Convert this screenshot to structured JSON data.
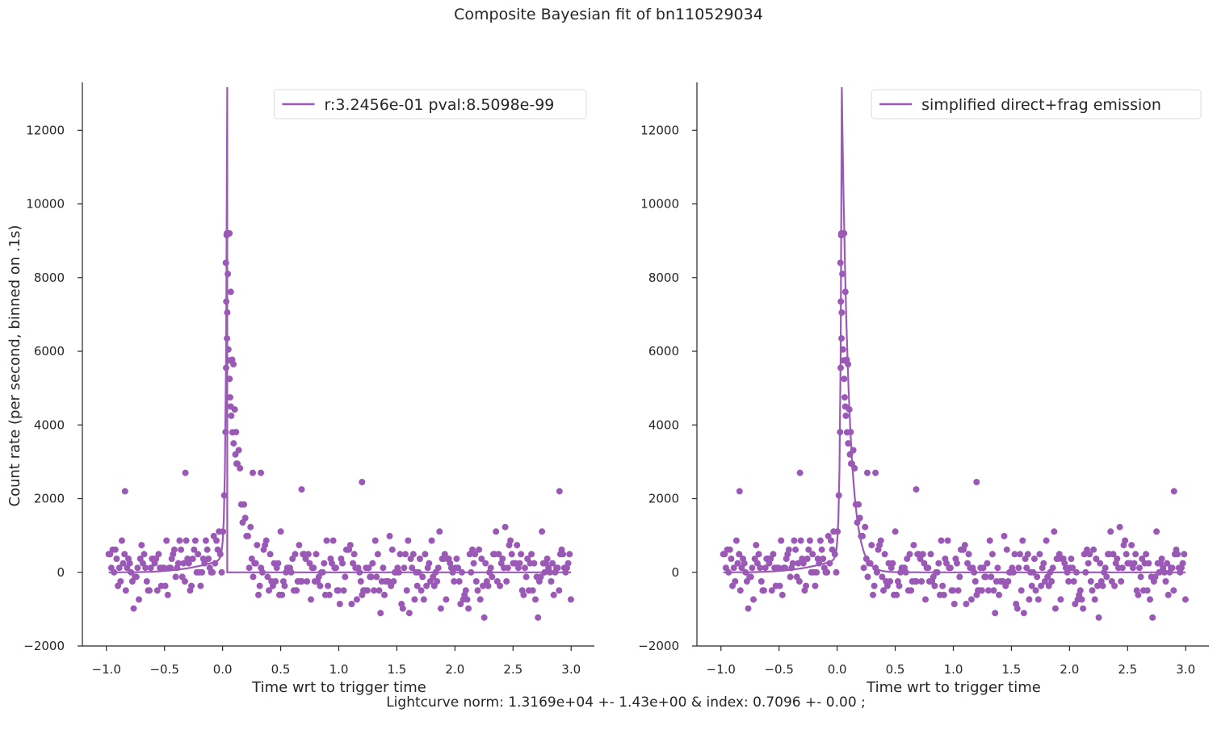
{
  "figure": {
    "title": "Composite Bayesian fit of bn110529034",
    "footer": "Lightcurve norm: 1.3169e+04 +- 1.43e+00 & index: 0.7096 +- 0.00 ;"
  },
  "colors": {
    "series": "#9b59b6",
    "axis": "#262626",
    "background": "#ffffff"
  },
  "chart_data": [
    {
      "type": "scatter",
      "xlabel": "Time wrt to trigger time",
      "ylabel": "Count rate (per second, binned on .1s)",
      "xlim": [
        -1.2,
        3.2
      ],
      "ylim": [
        -2000,
        13300
      ],
      "xticks": [
        -1.0,
        -0.5,
        0.0,
        0.5,
        1.0,
        1.5,
        2.0,
        2.5,
        3.0
      ],
      "xtick_labels": [
        "−1.0",
        "−0.5",
        "0.0",
        "0.5",
        "1.0",
        "1.5",
        "2.0",
        "2.5",
        "3.0"
      ],
      "yticks": [
        -2000,
        0,
        2000,
        4000,
        6000,
        8000,
        10000,
        12000
      ],
      "ytick_labels": [
        "−2000",
        "0",
        "2000",
        "4000",
        "6000",
        "8000",
        "10000",
        "12000"
      ],
      "grid": false,
      "legend": {
        "placement": "top-right",
        "entries": [
          "r:3.2456e-01  pval:8.5098e-99"
        ]
      },
      "fit_model": {
        "peak_time": 0.04,
        "peak_rate": 13169,
        "decay_tau": 0.06,
        "pre_peak": "power-law rise",
        "post_peak": "truncated"
      },
      "series_description": "Binned count-rate points (purple dots) and fitted lightcurve line"
    },
    {
      "type": "scatter",
      "xlabel": "Time wrt to trigger time",
      "ylabel": "",
      "xlim": [
        -1.2,
        3.2
      ],
      "ylim": [
        -2000,
        13300
      ],
      "xticks": [
        -1.0,
        -0.5,
        0.0,
        0.5,
        1.0,
        1.5,
        2.0,
        2.5,
        3.0
      ],
      "xtick_labels": [
        "−1.0",
        "−0.5",
        "0.0",
        "0.5",
        "1.0",
        "1.5",
        "2.0",
        "2.5",
        "3.0"
      ],
      "yticks": [
        -2000,
        0,
        2000,
        4000,
        6000,
        8000,
        10000,
        12000
      ],
      "ytick_labels": [
        "−2000",
        "0",
        "2000",
        "4000",
        "6000",
        "8000",
        "10000",
        "12000"
      ],
      "grid": false,
      "legend": {
        "placement": "top-right",
        "entries": [
          "simplified direct+frag emission"
        ]
      },
      "fit_model": {
        "peak_time": 0.04,
        "peak_rate": 13169,
        "decay_tau": 0.06,
        "pre_peak": "power-law rise",
        "post_peak": "smooth decay"
      }
    }
  ]
}
